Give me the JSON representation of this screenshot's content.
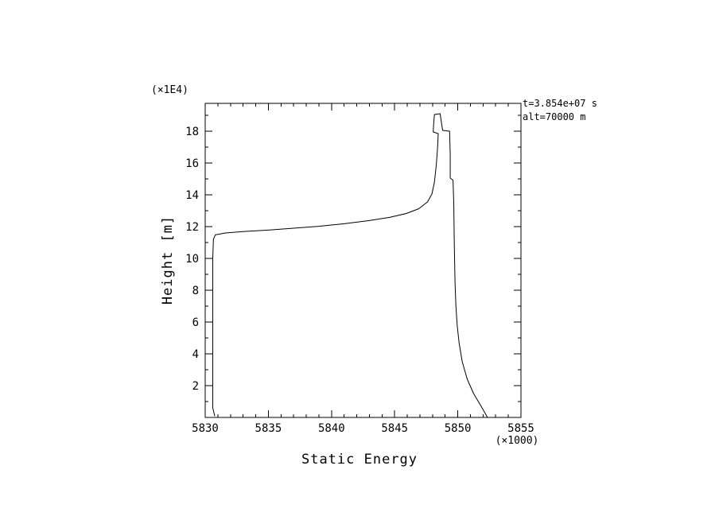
{
  "page": {
    "background_color": "#ffffff",
    "line_color": "#000000"
  },
  "chart_data": {
    "type": "line",
    "title": "",
    "xlabel": "Static Energy",
    "ylabel": "Height [m]",
    "x_scale_note": "(×1000)",
    "y_scale_note": "(×1E4)",
    "xlim": [
      5830,
      5855
    ],
    "ylim": [
      0,
      19.75
    ],
    "grid": false,
    "legend": "none",
    "x_ticks": [
      5830,
      5835,
      5840,
      5845,
      5850,
      5855
    ],
    "x_tick_labels": [
      "5830",
      "5835",
      "5840",
      "5845",
      "5850",
      "5855"
    ],
    "x_minor_step": 1,
    "y_ticks": [
      2,
      4,
      6,
      8,
      10,
      12,
      14,
      16,
      18
    ],
    "y_tick_labels": [
      "2",
      "4",
      "6",
      "8",
      "10",
      "12",
      "14",
      "16",
      "18"
    ],
    "y_minor_step": 1,
    "annotations": [
      "t=3.854e+07 s",
      "alt=70000 m"
    ],
    "series": [
      {
        "name": "static-energy-profile",
        "color": "#000000",
        "points": [
          [
            5830.75,
            0.1
          ],
          [
            5830.6,
            0.6
          ],
          [
            5830.6,
            5.0
          ],
          [
            5830.6,
            10.0
          ],
          [
            5830.65,
            11.2
          ],
          [
            5830.8,
            11.48
          ],
          [
            5831.6,
            11.6
          ],
          [
            5833.2,
            11.7
          ],
          [
            5835.0,
            11.78
          ],
          [
            5837.0,
            11.9
          ],
          [
            5839.0,
            12.02
          ],
          [
            5841.0,
            12.18
          ],
          [
            5843.0,
            12.38
          ],
          [
            5844.6,
            12.58
          ],
          [
            5845.9,
            12.82
          ],
          [
            5846.9,
            13.12
          ],
          [
            5847.6,
            13.55
          ],
          [
            5847.95,
            14.05
          ],
          [
            5848.15,
            14.8
          ],
          [
            5848.3,
            15.9
          ],
          [
            5848.4,
            17.0
          ],
          [
            5848.45,
            17.85
          ],
          [
            5848.05,
            17.95
          ],
          [
            5848.1,
            18.6
          ],
          [
            5848.15,
            19.05
          ],
          [
            5848.6,
            19.1
          ],
          [
            5848.75,
            18.3
          ],
          [
            5848.8,
            18.05
          ],
          [
            5849.35,
            18.0
          ],
          [
            5849.4,
            16.5
          ],
          [
            5849.4,
            15.05
          ],
          [
            5849.62,
            14.92
          ],
          [
            5849.68,
            13.5
          ],
          [
            5849.72,
            11.0
          ],
          [
            5849.78,
            8.5
          ],
          [
            5849.85,
            7.0
          ],
          [
            5849.95,
            5.8
          ],
          [
            5850.1,
            4.7
          ],
          [
            5850.35,
            3.5
          ],
          [
            5850.75,
            2.4
          ],
          [
            5851.25,
            1.5
          ],
          [
            5851.85,
            0.7
          ],
          [
            5852.35,
            0.0
          ]
        ]
      }
    ]
  }
}
